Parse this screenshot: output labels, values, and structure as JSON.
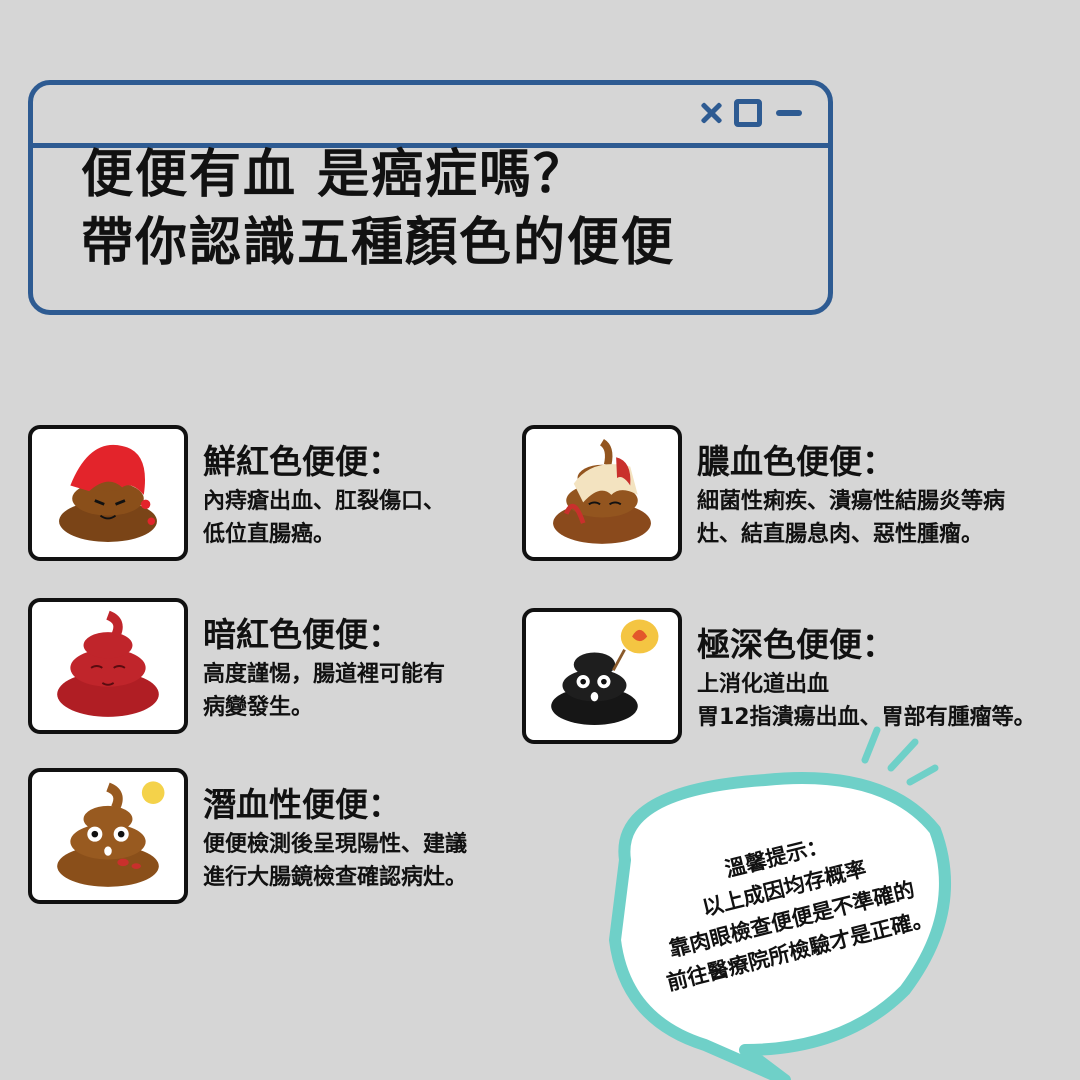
{
  "header": {
    "title_line1": "便便有血 是癌症嗎？",
    "title_line2": "帶你認識五種顏色的便便"
  },
  "cards": [
    {
      "title": "鮮紅色便便：",
      "desc_line1": "內痔瘡出血、肛裂傷口、",
      "desc_line2": "低位直腸癌。",
      "color": "#e3242b"
    },
    {
      "title": "膿血色便便：",
      "desc_line1": "細菌性痢疾、潰瘍性結腸炎等病",
      "desc_line2": "灶、結直腸息肉、惡性腫瘤。",
      "color": "#8a4a1c"
    },
    {
      "title": "暗紅色便便：",
      "desc_line1": "高度謹惕，腸道裡可能有",
      "desc_line2": "病變發生。",
      "color": "#b01e24"
    },
    {
      "title": "極深色便便：",
      "desc_line1": "上消化道出血",
      "desc_line2": "胃12指潰瘍出血、胃部有腫瘤等。",
      "color": "#161616"
    },
    {
      "title": "潛血性便便：",
      "desc_line1": "便便檢測後呈現陽性、建議",
      "desc_line2": "進行大腸鏡檢查確認病灶。",
      "color": "#8a4f1a"
    }
  ],
  "tip": {
    "line1": "溫馨提示：",
    "line2": "以上成因均存概率",
    "line3": "靠肉眼檢查便便是不準確的",
    "line4": "前往醫療院所檢驗才是正確。"
  },
  "colors": {
    "background": "#d6d6d6",
    "window_border": "#2e5b92",
    "bubble_border": "#6fd0c8"
  }
}
